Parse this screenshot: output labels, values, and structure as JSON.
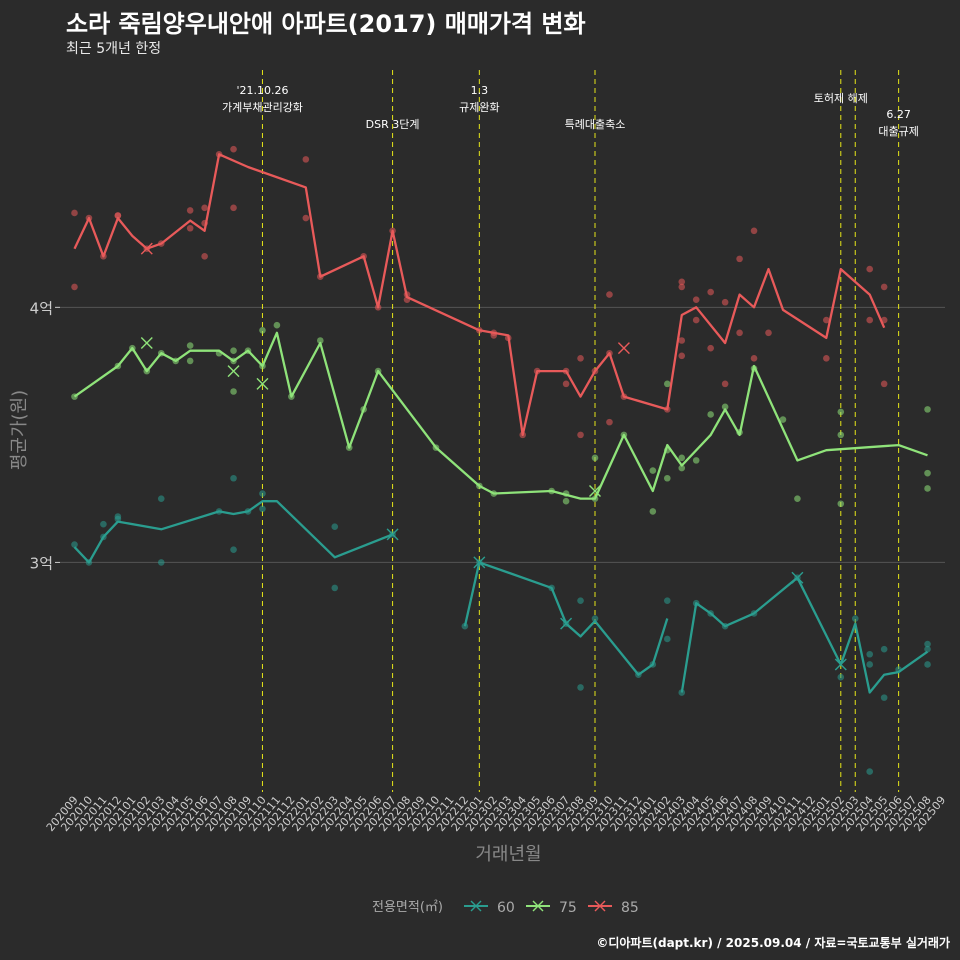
{
  "title": "소라 죽림양우내안애 아파트(2017) 매매가격 변화",
  "subtitle": "최근 5개년 한정",
  "caption": "©디아파트(dapt.kr) / 2025.09.04 / 자료=국토교통부 실거래가",
  "colors": {
    "background": "#2b2b2b",
    "grid": "#555555",
    "axis_text": "#cccccc",
    "event_line": "#e6e619",
    "s60": "#2a9d8f",
    "s75": "#8fe37a",
    "s85": "#e85a5a"
  },
  "chart_data": {
    "type": "line",
    "xlabel": "거래년월",
    "ylabel": "평균가(원)",
    "x_ticks": [
      "202009",
      "202010",
      "202011",
      "202012",
      "202101",
      "202102",
      "202103",
      "202104",
      "202105",
      "202106",
      "202107",
      "202108",
      "202109",
      "202110",
      "202111",
      "202112",
      "202201",
      "202202",
      "202203",
      "202204",
      "202205",
      "202206",
      "202207",
      "202208",
      "202209",
      "202210",
      "202211",
      "202212",
      "202301",
      "202302",
      "202303",
      "202304",
      "202305",
      "202306",
      "202307",
      "202308",
      "202309",
      "202310",
      "202311",
      "202312",
      "202401",
      "202402",
      "202403",
      "202404",
      "202405",
      "202406",
      "202407",
      "202408",
      "202409",
      "202410",
      "202411",
      "202412",
      "202501",
      "202502",
      "202503",
      "202504",
      "202505",
      "202506",
      "202507",
      "202508",
      "202509"
    ],
    "y_ticks": [
      {
        "value": 3.0,
        "label": "3억"
      },
      {
        "value": 4.0,
        "label": "4억"
      }
    ],
    "ylim": [
      2.1,
      4.95
    ],
    "legend": {
      "title": "전용면적(㎡)",
      "position": "bottom",
      "entries": [
        "60",
        "75",
        "85"
      ]
    },
    "events": [
      {
        "x": 13.0,
        "lines": [
          "'21.10.26",
          "가계부채관리강화"
        ],
        "level": 0
      },
      {
        "x": 22.0,
        "lines": [
          "DSR 3단계"
        ],
        "level": 2
      },
      {
        "x": 28.0,
        "lines": [
          "1.3",
          "규제완화"
        ],
        "level": 0
      },
      {
        "x": 36.0,
        "lines": [
          "특례대출축소"
        ],
        "level": 2
      },
      {
        "x": 53.0,
        "lines": [
          "토허제 해제"
        ],
        "level": 1
      },
      {
        "x": 54.0,
        "lines": [],
        "level": 1
      },
      {
        "x": 57.0,
        "lines": [
          "6.27",
          "대출규제"
        ],
        "level": 3
      }
    ],
    "series": [
      {
        "name": "60",
        "line": [
          [
            0,
            3.06
          ],
          [
            1,
            3.0
          ],
          [
            2,
            3.1
          ],
          [
            3,
            3.16
          ],
          [
            6,
            3.13
          ],
          [
            10,
            3.2
          ],
          [
            11,
            3.19
          ],
          [
            12,
            3.2
          ],
          [
            13,
            3.24
          ],
          [
            14,
            3.24
          ],
          [
            18,
            3.02
          ],
          [
            22,
            3.11
          ],
          null,
          [
            27,
            2.75
          ],
          [
            28,
            3.0
          ],
          [
            33,
            2.9
          ],
          [
            34,
            2.76
          ],
          [
            35,
            2.71
          ],
          [
            36,
            2.77
          ],
          [
            39,
            2.56
          ],
          [
            40,
            2.6
          ],
          [
            41,
            2.78
          ],
          null,
          [
            42,
            2.49
          ],
          [
            43,
            2.84
          ],
          [
            44,
            2.8
          ],
          [
            45,
            2.75
          ],
          [
            47,
            2.8
          ],
          [
            50,
            2.94
          ],
          [
            53,
            2.6
          ],
          [
            54,
            2.76
          ],
          [
            55,
            2.49
          ],
          [
            56,
            2.56
          ],
          [
            57,
            2.57
          ],
          [
            59,
            2.65
          ]
        ],
        "points": [
          [
            0,
            3.07
          ],
          [
            1,
            3.0
          ],
          [
            2,
            3.1
          ],
          [
            2,
            3.15
          ],
          [
            3,
            3.17
          ],
          [
            3,
            3.18
          ],
          [
            6,
            3.25
          ],
          [
            6,
            3.0
          ],
          [
            10,
            3.2
          ],
          [
            11,
            3.33
          ],
          [
            11,
            3.05
          ],
          [
            12,
            3.2
          ],
          [
            13,
            3.27
          ],
          [
            13,
            3.21
          ],
          [
            18,
            3.14
          ],
          [
            18,
            2.9
          ],
          [
            22,
            3.11
          ],
          [
            27,
            2.75
          ],
          [
            28,
            3.0
          ],
          [
            33,
            2.9
          ],
          [
            34,
            2.76
          ],
          [
            35,
            2.85
          ],
          [
            35,
            2.51
          ],
          [
            36,
            2.78
          ],
          [
            39,
            2.56
          ],
          [
            40,
            2.6
          ],
          [
            41,
            2.7
          ],
          [
            41,
            2.85
          ],
          [
            42,
            2.49
          ],
          [
            43,
            2.84
          ],
          [
            44,
            2.8
          ],
          [
            45,
            2.75
          ],
          [
            47,
            2.8
          ],
          [
            50,
            2.94
          ],
          [
            53,
            2.55
          ],
          [
            54,
            2.78
          ],
          [
            55,
            2.64
          ],
          [
            55,
            2.6
          ],
          [
            55,
            2.18
          ],
          [
            56,
            2.66
          ],
          [
            56,
            2.47
          ],
          [
            57,
            2.58
          ],
          [
            59,
            2.6
          ],
          [
            59,
            2.68
          ],
          [
            59,
            2.66
          ]
        ],
        "crosses": [
          [
            22,
            3.11
          ],
          [
            28,
            3.0
          ],
          [
            34,
            2.76
          ],
          [
            50,
            2.94
          ],
          [
            53,
            2.6
          ]
        ]
      },
      {
        "name": "75",
        "line": [
          [
            0,
            3.65
          ],
          [
            3,
            3.77
          ],
          [
            4,
            3.84
          ],
          [
            5,
            3.75
          ],
          [
            6,
            3.82
          ],
          [
            7,
            3.79
          ],
          [
            8,
            3.83
          ],
          [
            10,
            3.83
          ],
          [
            11,
            3.79
          ],
          [
            12,
            3.83
          ],
          [
            13,
            3.77
          ],
          [
            14,
            3.9
          ],
          [
            15,
            3.65
          ],
          [
            17,
            3.86
          ],
          [
            19,
            3.45
          ],
          [
            20,
            3.6
          ],
          [
            21,
            3.75
          ],
          [
            25,
            3.45
          ],
          [
            28,
            3.3
          ],
          [
            29,
            3.27
          ],
          [
            33,
            3.28
          ],
          [
            35,
            3.25
          ],
          [
            36,
            3.25
          ],
          [
            38,
            3.5
          ],
          [
            40,
            3.28
          ],
          [
            41,
            3.46
          ],
          [
            42,
            3.38
          ],
          [
            44,
            3.5
          ],
          [
            45,
            3.6
          ],
          [
            46,
            3.5
          ],
          [
            47,
            3.77
          ],
          [
            50,
            3.4
          ],
          [
            52,
            3.44
          ],
          [
            57,
            3.46
          ],
          [
            59,
            3.42
          ]
        ],
        "points": [
          [
            0,
            3.65
          ],
          [
            3,
            3.77
          ],
          [
            4,
            3.84
          ],
          [
            5,
            3.75
          ],
          [
            6,
            3.82
          ],
          [
            7,
            3.79
          ],
          [
            8,
            3.85
          ],
          [
            8,
            3.79
          ],
          [
            10,
            3.82
          ],
          [
            11,
            3.83
          ],
          [
            11,
            3.79
          ],
          [
            11,
            3.67
          ],
          [
            12,
            3.83
          ],
          [
            13,
            3.91
          ],
          [
            13,
            3.77
          ],
          [
            14,
            3.93
          ],
          [
            15,
            3.65
          ],
          [
            17,
            3.87
          ],
          [
            19,
            3.45
          ],
          [
            20,
            3.6
          ],
          [
            21,
            3.75
          ],
          [
            25,
            3.45
          ],
          [
            28,
            3.3
          ],
          [
            29,
            3.27
          ],
          [
            33,
            3.28
          ],
          [
            34,
            3.24
          ],
          [
            34,
            3.27
          ],
          [
            36,
            3.25
          ],
          [
            36,
            3.41
          ],
          [
            38,
            3.5
          ],
          [
            40,
            3.2
          ],
          [
            40,
            3.36
          ],
          [
            41,
            3.44
          ],
          [
            41,
            3.33
          ],
          [
            41,
            3.7
          ],
          [
            42,
            3.41
          ],
          [
            42,
            3.37
          ],
          [
            43,
            3.4
          ],
          [
            44,
            3.58
          ],
          [
            45,
            3.61
          ],
          [
            46,
            3.51
          ],
          [
            47,
            3.76
          ],
          [
            49,
            3.56
          ],
          [
            50,
            3.25
          ],
          [
            53,
            3.5
          ],
          [
            53,
            3.59
          ],
          [
            53,
            3.23
          ],
          [
            59,
            3.6
          ],
          [
            59,
            3.35
          ],
          [
            59,
            3.29
          ]
        ],
        "crosses": [
          [
            5,
            3.86
          ],
          [
            11,
            3.75
          ],
          [
            13,
            3.7
          ],
          [
            36,
            3.28
          ]
        ]
      },
      {
        "name": "85",
        "line": [
          [
            0,
            4.23
          ],
          [
            1,
            4.35
          ],
          [
            2,
            4.2
          ],
          [
            3,
            4.35
          ],
          [
            4,
            4.28
          ],
          [
            5,
            4.23
          ],
          [
            6,
            4.25
          ],
          [
            8,
            4.34
          ],
          [
            9,
            4.3
          ],
          [
            10,
            4.6
          ],
          [
            12,
            4.55
          ],
          [
            16,
            4.47
          ],
          [
            17,
            4.12
          ],
          [
            20,
            4.2
          ],
          [
            21,
            4.0
          ],
          [
            22,
            4.3
          ],
          [
            23,
            4.04
          ],
          [
            28,
            3.91
          ],
          [
            30,
            3.89
          ],
          [
            31,
            3.5
          ],
          [
            32,
            3.75
          ],
          [
            33,
            3.75
          ],
          [
            34,
            3.75
          ],
          [
            35,
            3.65
          ],
          [
            36,
            3.75
          ],
          [
            37,
            3.82
          ],
          [
            38,
            3.65
          ],
          [
            41,
            3.6
          ],
          [
            42,
            3.97
          ],
          [
            43,
            4.0
          ],
          [
            45,
            3.86
          ],
          [
            46,
            4.05
          ],
          [
            47,
            4.0
          ],
          [
            48,
            4.15
          ],
          [
            49,
            3.99
          ],
          [
            52,
            3.88
          ],
          [
            53,
            4.15
          ],
          [
            55,
            4.05
          ],
          [
            56,
            3.92
          ]
        ],
        "points": [
          [
            0,
            4.37
          ],
          [
            0,
            4.08
          ],
          [
            1,
            4.35
          ],
          [
            2,
            4.2
          ],
          [
            3,
            4.36
          ],
          [
            3,
            4.36
          ],
          [
            5,
            4.23
          ],
          [
            6,
            4.25
          ],
          [
            8,
            4.38
          ],
          [
            8,
            4.31
          ],
          [
            9,
            4.39
          ],
          [
            9,
            4.33
          ],
          [
            9,
            4.2
          ],
          [
            10,
            4.6
          ],
          [
            11,
            4.62
          ],
          [
            11,
            4.39
          ],
          [
            16,
            4.58
          ],
          [
            16,
            4.35
          ],
          [
            17,
            4.12
          ],
          [
            20,
            4.2
          ],
          [
            21,
            4.0
          ],
          [
            22,
            4.3
          ],
          [
            23,
            4.05
          ],
          [
            23,
            4.03
          ],
          [
            28,
            3.91
          ],
          [
            29,
            3.9
          ],
          [
            29,
            3.89
          ],
          [
            30,
            3.88
          ],
          [
            31,
            3.5
          ],
          [
            32,
            3.75
          ],
          [
            34,
            3.7
          ],
          [
            34,
            3.75
          ],
          [
            35,
            3.8
          ],
          [
            35,
            3.5
          ],
          [
            36,
            3.75
          ],
          [
            37,
            3.82
          ],
          [
            37,
            4.05
          ],
          [
            37,
            3.55
          ],
          [
            38,
            3.65
          ],
          [
            41,
            3.6
          ],
          [
            42,
            4.1
          ],
          [
            42,
            4.08
          ],
          [
            42,
            3.87
          ],
          [
            42,
            3.81
          ],
          [
            43,
            4.03
          ],
          [
            43,
            3.95
          ],
          [
            44,
            4.06
          ],
          [
            44,
            3.84
          ],
          [
            45,
            4.02
          ],
          [
            45,
            3.7
          ],
          [
            46,
            4.19
          ],
          [
            46,
            3.9
          ],
          [
            47,
            4.3
          ],
          [
            47,
            3.8
          ],
          [
            48,
            3.9
          ],
          [
            52,
            3.8
          ],
          [
            52,
            3.95
          ],
          [
            55,
            4.15
          ],
          [
            55,
            3.95
          ],
          [
            56,
            4.08
          ],
          [
            56,
            3.7
          ],
          [
            56,
            3.95
          ]
        ],
        "crosses": [
          [
            5,
            4.23
          ],
          [
            38,
            3.84
          ]
        ]
      }
    ]
  }
}
